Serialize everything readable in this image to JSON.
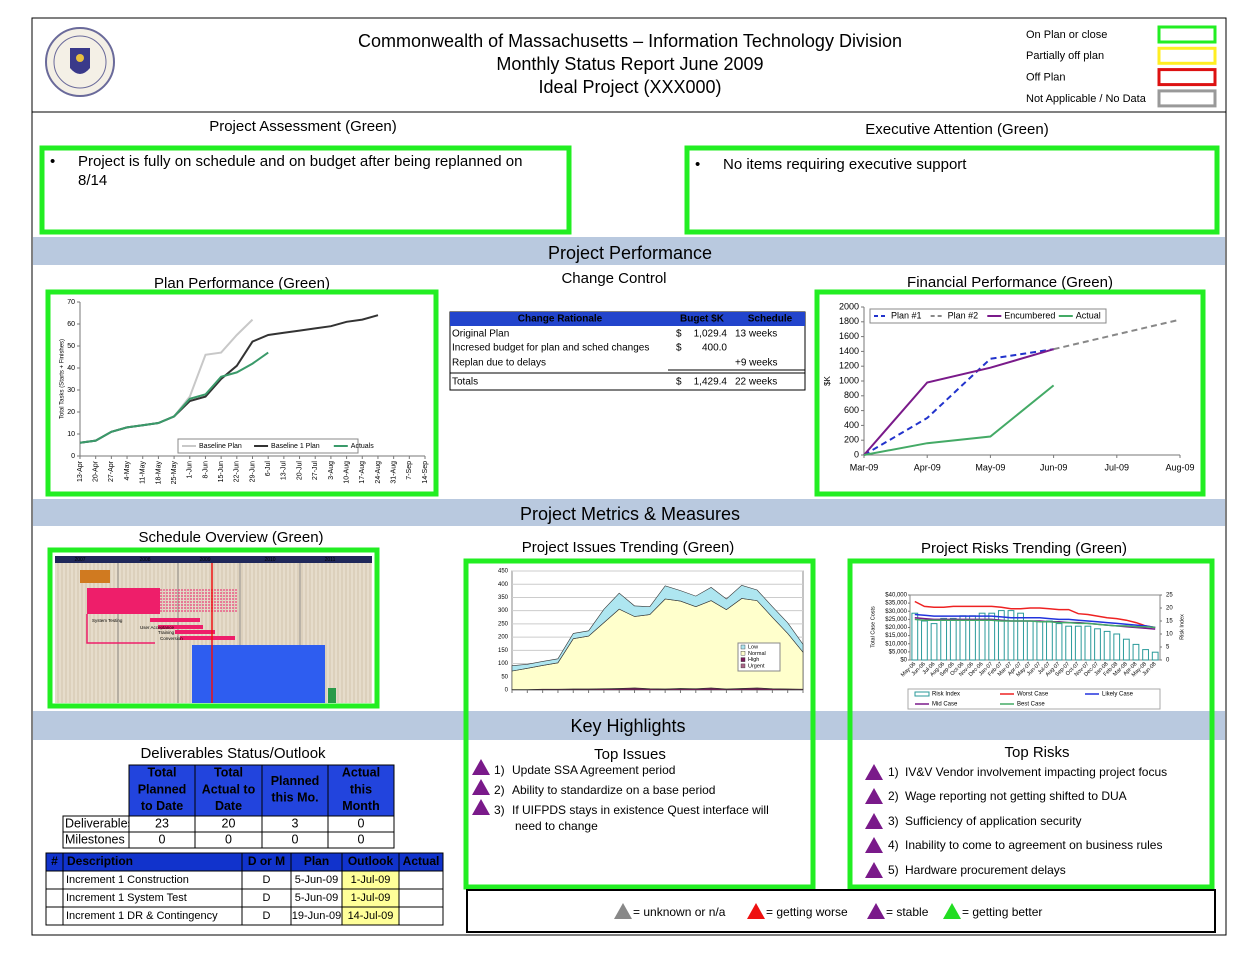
{
  "header": {
    "title_lines": [
      "Commonwealth of Massachusetts – Information Technology Division",
      "Monthly Status Report June 2009",
      "Ideal Project (XXX000)"
    ],
    "status_key": [
      {
        "label": "On Plan or close",
        "color": "#22ee22"
      },
      {
        "label": "Partially off plan",
        "color": "#ffee22"
      },
      {
        "label": "Off Plan",
        "color": "#dd1111"
      },
      {
        "label": "Not Applicable / No Data",
        "color": "#999999"
      }
    ]
  },
  "assessment": {
    "title": "Project Assessment (Green)",
    "bullet_lines": [
      "Project is fully on schedule and on budget after being replanned on",
      "8/14"
    ]
  },
  "executive": {
    "title": "Executive Attention (Green)",
    "bullet_lines": [
      "No items requiring executive support"
    ]
  },
  "sections": [
    "Project Performance",
    "Project Metrics & Measures",
    "Key Highlights"
  ],
  "chart_data": [
    {
      "type": "line",
      "title": "Plan Performance (Green)",
      "y_label": "Total Tasks (Starts + Finishes)",
      "categories": [
        "13-Apr",
        "20-Apr",
        "27-Apr",
        "4-May",
        "11-May",
        "18-May",
        "25-May",
        "1-Jun",
        "8-Jun",
        "15-Jun",
        "22-Jun",
        "29-Jun",
        "6-Jul",
        "13-Jul",
        "20-Jul",
        "27-Jul",
        "3-Aug",
        "10-Aug",
        "17-Aug",
        "24-Aug",
        "31-Aug",
        "7-Sep",
        "14-Sep"
      ],
      "ylim": [
        0,
        70
      ],
      "yticks": [
        0,
        10,
        20,
        30,
        40,
        50,
        60,
        70
      ],
      "grid": false,
      "series": [
        {
          "name": "Baseline Plan",
          "color": "#c8c8c8",
          "values": [
            6,
            7,
            11,
            13,
            14,
            15,
            18,
            27,
            46,
            47,
            55,
            62,
            null,
            null,
            null,
            null,
            null,
            null,
            null,
            null,
            null,
            null,
            null
          ]
        },
        {
          "name": "Baseline 1 Plan",
          "color": "#333333",
          "values": [
            6,
            7,
            11,
            13,
            14,
            15,
            18,
            25,
            27,
            35,
            41,
            52,
            55,
            56,
            57,
            58,
            59,
            61,
            62,
            64,
            null,
            null,
            null
          ]
        },
        {
          "name": "Actuals",
          "color": "#3a9a6a",
          "values": [
            6,
            7,
            11,
            13,
            14,
            15,
            18,
            26,
            28,
            36,
            38,
            42,
            47,
            null,
            null,
            null,
            null,
            null,
            null,
            null,
            null,
            null,
            null
          ]
        }
      ]
    },
    {
      "type": "line",
      "title": "Financial Performance (Green)",
      "y_label": "$K",
      "categories": [
        "Mar-09",
        "Apr-09",
        "May-09",
        "Jun-09",
        "Jul-09",
        "Aug-09"
      ],
      "ylim": [
        0,
        2000
      ],
      "yticks": [
        0,
        200,
        400,
        600,
        800,
        1000,
        1200,
        1400,
        1600,
        1800,
        2000
      ],
      "grid": false,
      "series": [
        {
          "name": "Plan #1",
          "color": "#2233cc",
          "dash": true,
          "values": [
            0,
            500,
            1300,
            1430,
            null,
            null
          ]
        },
        {
          "name": "Plan #2",
          "color": "#888888",
          "dash": true,
          "values": [
            null,
            null,
            null,
            1430,
            1630,
            1830
          ]
        },
        {
          "name": "Encumbered",
          "color": "#7a1a8a",
          "values": [
            0,
            980,
            1180,
            1430,
            null,
            null
          ]
        },
        {
          "name": "Actual",
          "color": "#44aa66",
          "values": [
            0,
            160,
            250,
            940,
            null,
            null
          ]
        }
      ]
    },
    {
      "type": "stacked_area",
      "title": "Project Issues Trending (Green)",
      "categories": [
        null,
        null,
        null,
        null,
        null,
        null,
        null,
        null,
        null,
        null,
        null,
        null,
        null,
        null,
        null,
        null,
        null,
        null,
        null,
        null
      ],
      "ylim": [
        0,
        450
      ],
      "yticks": [
        0,
        50,
        100,
        150,
        200,
        250,
        300,
        350,
        400,
        450
      ],
      "grid": true,
      "series": [
        {
          "name": "High",
          "color": "#7a1a5a",
          "values": [
            2,
            2,
            3,
            3,
            4,
            4,
            5,
            6,
            8,
            5,
            4,
            6,
            5,
            8,
            4,
            6,
            8,
            5,
            4,
            3
          ]
        },
        {
          "name": "Urgent",
          "color": "#aa6688",
          "values": [
            0,
            0,
            0,
            0,
            0,
            0,
            0,
            0,
            0,
            0,
            0,
            0,
            0,
            0,
            0,
            0,
            0,
            0,
            0,
            0
          ]
        },
        {
          "name": "Normal",
          "color": "#ffffcc",
          "values": [
            70,
            80,
            90,
            100,
            190,
            200,
            250,
            300,
            270,
            280,
            340,
            330,
            310,
            330,
            300,
            340,
            330,
            270,
            210,
            140
          ]
        },
        {
          "name": "Low",
          "color": "#aee6f0",
          "values": [
            20,
            15,
            15,
            15,
            20,
            20,
            50,
            60,
            40,
            30,
            50,
            40,
            40,
            50,
            40,
            50,
            40,
            40,
            40,
            30
          ]
        }
      ]
    },
    {
      "type": "bar_line",
      "title": "Project Risks Trending (Green)",
      "y_label": "Total Case Costs",
      "y2_label": "Risk Index",
      "categories": [
        "May-06",
        "Jun-06",
        "Jul-06",
        "Aug-06",
        "Sep-06",
        "Oct-06",
        "Nov-06",
        "Dec-06",
        "Jan-07",
        "Feb-07",
        "Mar-07",
        "Apr-07",
        "May-07",
        "Jun-07",
        "Jul-07",
        "Aug-07",
        "Sep-07",
        "Oct-07",
        "Nov-07",
        "Dec-07",
        "Jan-08",
        "Feb-08",
        "Mar-08",
        "Apr-08",
        "May-08",
        "Jun-08"
      ],
      "ylim": [
        0,
        40000
      ],
      "yticks": [
        {
          "value": 0,
          "label": "$0"
        },
        {
          "value": 5000,
          "label": "$5,000"
        },
        {
          "value": 10000,
          "label": "$10,000"
        },
        {
          "value": 15000,
          "label": "$15,000"
        },
        {
          "value": 20000,
          "label": "$20,000"
        },
        {
          "value": 25000,
          "label": "$25,000"
        },
        {
          "value": 30000,
          "label": "$30,000"
        },
        {
          "value": 35000,
          "label": "$35,000"
        },
        {
          "value": 40000,
          "label": "$40,000"
        }
      ],
      "y2lim": [
        0,
        25
      ],
      "y2ticks": [
        0,
        5,
        10,
        15,
        20,
        25
      ],
      "series": [
        {
          "name": "Risk Index",
          "color": "#2a9a9a",
          "axis": "y2",
          "values": [
            18,
            15,
            14,
            16,
            16,
            17,
            17,
            18,
            18,
            19,
            19,
            18,
            15,
            15,
            15,
            14,
            13,
            13,
            13,
            12,
            11,
            10,
            8,
            6,
            4,
            3
          ]
        },
        {
          "name": "Worst Case",
          "color": "#ee2222",
          "values": [
            36000,
            33000,
            32500,
            32500,
            33000,
            33000,
            33000,
            33000,
            33000,
            32500,
            31500,
            31500,
            32000,
            32000,
            31500,
            31000,
            31000,
            28500,
            28000,
            27000,
            26000,
            25500,
            24500,
            23000,
            21000,
            20000
          ]
        },
        {
          "name": "Likely Case",
          "color": "#2233dd",
          "values": [
            28000,
            27500,
            27000,
            27000,
            27000,
            27000,
            27000,
            27000,
            27000,
            26500,
            26000,
            26000,
            26000,
            26000,
            25500,
            25000,
            25000,
            24500,
            24000,
            23500,
            23000,
            22500,
            22000,
            21500,
            21000,
            20000
          ]
        },
        {
          "name": "Mid Case",
          "color": "#7a1a8a",
          "values": [
            26000,
            25500,
            25000,
            25000,
            25000,
            25000,
            25000,
            25000,
            25000,
            24500,
            24000,
            24000,
            24000,
            24000,
            23500,
            23500,
            23000,
            23000,
            22500,
            22000,
            21500,
            21000,
            20500,
            20000,
            19500,
            19000
          ]
        },
        {
          "name": "Best Case",
          "color": "#44aa66",
          "values": [
            25000,
            24500,
            24500,
            24500,
            24500,
            24500,
            24500,
            24500,
            24500,
            24000,
            24000,
            24000,
            24000,
            23500,
            23500,
            23000,
            23000,
            22500,
            22500,
            22000,
            21500,
            21000,
            21000,
            20500,
            20500,
            20000
          ]
        }
      ]
    }
  ],
  "change_control": {
    "title": "Change Control",
    "headers": [
      "Change Rationale",
      "Buget $K",
      "Schedule"
    ],
    "rows": [
      [
        "Original Plan",
        "$",
        "1,029.4",
        "13 weeks"
      ],
      [
        "Incresed budget for plan and sched changes",
        "$",
        "400.0",
        null
      ],
      [
        "Replan due to delays",
        null,
        null,
        "+9 weeks"
      ],
      [
        "Totals",
        "$",
        "1,429.4",
        "22 weeks"
      ]
    ]
  },
  "schedule_overview": {
    "title": "Schedule Overview (Green)",
    "years": [
      "2007",
      "2008",
      "2009",
      "2010",
      "2011"
    ],
    "tasks": [
      "System Testing",
      "User Acceptance",
      "Training",
      "Conversion"
    ]
  },
  "deliverables": {
    "title": "Deliverables Status/Outlook",
    "headers": [
      [
        "Total",
        "Planned",
        "to Date"
      ],
      [
        "Total",
        "Actual to",
        "Date"
      ],
      [
        "Planned",
        "this Mo."
      ],
      [
        "Actual",
        "this",
        "Month"
      ]
    ],
    "rows": [
      {
        "label": "Deliverables",
        "values": [
          23,
          20,
          3,
          0
        ]
      },
      {
        "label": "Milestones",
        "values": [
          0,
          0,
          0,
          0
        ]
      }
    ]
  },
  "milestone_table": {
    "headers": [
      "#",
      "Description",
      "D or M",
      "Plan",
      "Outlook",
      "Actual"
    ],
    "rows": [
      [
        null,
        "Increment 1 Construction",
        "D",
        "5-Jun-09",
        "1-Jul-09",
        null
      ],
      [
        null,
        "Increment 1 System Test",
        "D",
        "5-Jun-09",
        "1-Jul-09",
        null
      ],
      [
        null,
        "Increment 1 DR & Contingency",
        "D",
        "19-Jun-09",
        "14-Jul-09",
        null
      ]
    ]
  },
  "top_issues": {
    "title": "Top Issues",
    "items": [
      {
        "num": "1)",
        "lines": [
          "Update SSA Agreement period"
        ],
        "color": "#7a1a8a"
      },
      {
        "num": "2)",
        "lines": [
          "Ability to standardize on a base period"
        ],
        "color": "#7a1a8a"
      },
      {
        "num": "3)",
        "lines": [
          "If UIFPDS stays in existence Quest interface will",
          "need to change"
        ],
        "color": "#7a1a8a"
      }
    ]
  },
  "top_risks": {
    "title": "Top Risks",
    "items": [
      {
        "num": "1)",
        "lines": [
          "IV&V Vendor involvement impacting project focus"
        ],
        "color": "#7a1a8a"
      },
      {
        "num": "2)",
        "lines": [
          "Wage reporting not getting shifted to DUA"
        ],
        "color": "#7a1a8a"
      },
      {
        "num": "3)",
        "lines": [
          "Sufficiency of application security"
        ],
        "color": "#7a1a8a"
      },
      {
        "num": "4)",
        "lines": [
          "Inability to come to agreement on business rules"
        ],
        "color": "#7a1a8a"
      },
      {
        "num": "5)",
        "lines": [
          "Hardware procurement delays"
        ],
        "color": "#7a1a8a"
      }
    ]
  },
  "trend_key": [
    {
      "label": "= unknown or n/a",
      "color": "#888888"
    },
    {
      "label": "= getting worse",
      "color": "#ee1111"
    },
    {
      "label": "= stable",
      "color": "#7a1a8a"
    },
    {
      "label": "= getting better",
      "color": "#22dd22"
    }
  ]
}
